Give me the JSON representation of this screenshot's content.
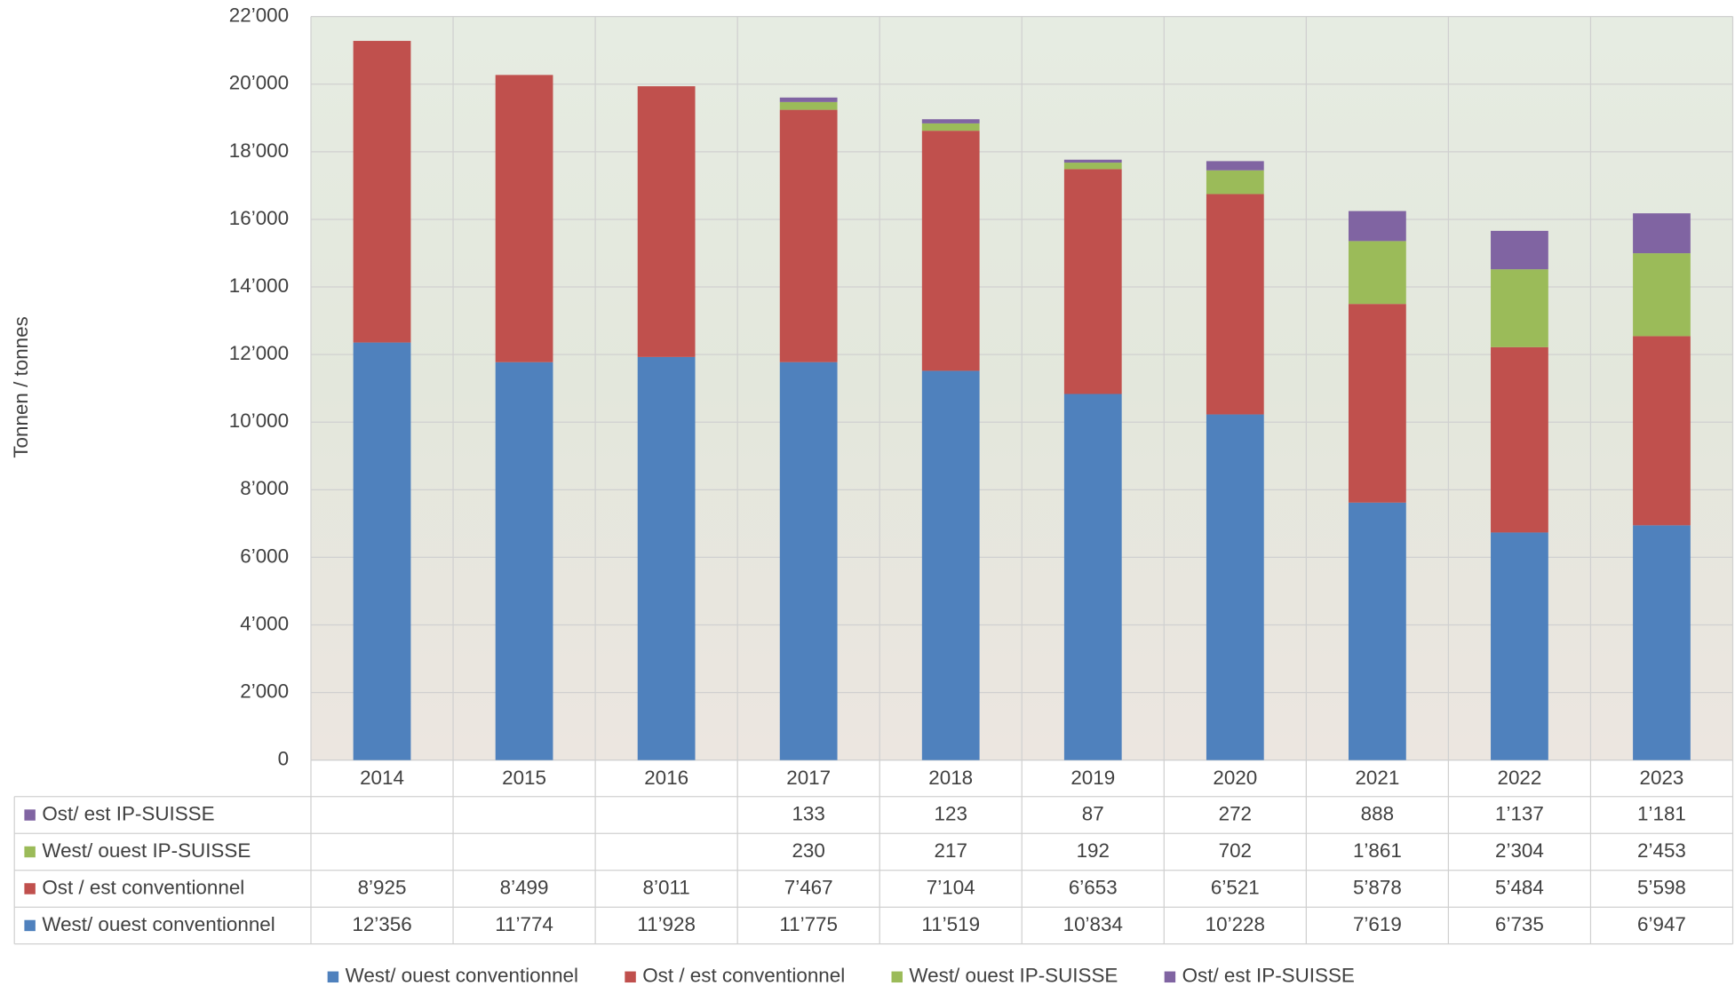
{
  "chart_data": {
    "type": "bar",
    "stacked": true,
    "y_label": "Tonnen / tonnes",
    "categories": [
      "2014",
      "2015",
      "2016",
      "2017",
      "2018",
      "2019",
      "2020",
      "2021",
      "2022",
      "2023"
    ],
    "ylim": [
      0,
      22000
    ],
    "yticks": [
      0,
      {
        "value": 2000,
        "label": "2’000"
      },
      {
        "value": 4000,
        "label": "4’000"
      },
      {
        "value": 6000,
        "label": "6’000"
      },
      {
        "value": 8000,
        "label": "8’000"
      },
      {
        "value": 10000,
        "label": "10’000"
      },
      {
        "value": 12000,
        "label": "12’000"
      },
      {
        "value": 14000,
        "label": "14’000"
      },
      {
        "value": 16000,
        "label": "16’000"
      },
      {
        "value": 18000,
        "label": "18’000"
      },
      {
        "value": 20000,
        "label": "20’000"
      },
      {
        "value": 22000,
        "label": "22’000"
      }
    ],
    "grid": true,
    "legend": "bottom",
    "series": [
      {
        "name": "West/ ouest conventionnel",
        "color": "#4f81bd",
        "values": [
          12356,
          11774,
          11928,
          11775,
          11519,
          10834,
          10228,
          7619,
          6735,
          6947
        ],
        "value_labels": [
          "12’356",
          "11’774",
          "11’928",
          "11’775",
          "11’519",
          "10’834",
          "10’228",
          "7’619",
          "6’735",
          "6’947"
        ]
      },
      {
        "name": "Ost / est conventionnel",
        "color": "#c0504d",
        "values": [
          8925,
          8499,
          8011,
          7467,
          7104,
          6653,
          6521,
          5878,
          5484,
          5598
        ],
        "value_labels": [
          "8’925",
          "8’499",
          "8’011",
          "7’467",
          "7’104",
          "6’653",
          "6’521",
          "5’878",
          "5’484",
          "5’598"
        ]
      },
      {
        "name": "West/ ouest IP-SUISSE",
        "color": "#9bbb59",
        "values": [
          null,
          null,
          null,
          230,
          217,
          192,
          702,
          1861,
          2304,
          2453
        ],
        "value_labels": [
          null,
          null,
          null,
          "230",
          "217",
          "192",
          "702",
          "1’861",
          "2’304",
          "2’453"
        ]
      },
      {
        "name": "Ost/ est IP-SUISSE",
        "color": "#8064a2",
        "values": [
          null,
          null,
          null,
          133,
          123,
          87,
          272,
          888,
          1137,
          1181
        ],
        "value_labels": [
          null,
          null,
          null,
          "133",
          "123",
          "87",
          "272",
          "888",
          "1’137",
          "1’181"
        ]
      }
    ]
  }
}
